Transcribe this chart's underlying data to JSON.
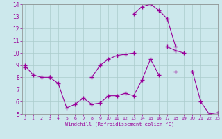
{
  "x": [
    0,
    1,
    2,
    3,
    4,
    5,
    6,
    7,
    8,
    9,
    10,
    11,
    12,
    13,
    14,
    15,
    16,
    17,
    18,
    19,
    20,
    21,
    22,
    23
  ],
  "y_low": [
    9.0,
    8.2,
    8.0,
    8.0,
    7.5,
    5.5,
    5.8,
    6.3,
    5.8,
    5.9,
    6.5,
    6.5,
    6.7,
    6.5,
    7.8,
    9.5,
    8.2,
    null,
    null,
    null,
    null,
    null,
    null,
    null
  ],
  "y_spike": [
    null,
    null,
    null,
    null,
    null,
    null,
    null,
    null,
    null,
    null,
    null,
    null,
    null,
    13.2,
    13.8,
    14.0,
    13.5,
    12.8,
    10.5,
    null,
    null,
    null,
    null,
    null
  ],
  "y_rise": [
    8.8,
    null,
    null,
    8.0,
    null,
    null,
    null,
    null,
    8.0,
    9.0,
    9.5,
    9.8,
    9.9,
    10.0,
    null,
    null,
    null,
    10.5,
    10.2,
    10.0,
    null,
    null,
    null,
    null
  ],
  "y_flat": [
    null,
    null,
    null,
    null,
    null,
    null,
    null,
    null,
    null,
    null,
    null,
    null,
    null,
    null,
    null,
    null,
    null,
    null,
    8.5,
    null,
    8.5,
    6.0,
    5.0,
    5.1
  ],
  "color": "#990099",
  "bg_color": "#cce8ec",
  "grid_color": "#aacccc",
  "xlabel": "Windchill (Refroidissement éolien,°C)",
  "xlim": [
    -0.5,
    23
  ],
  "ylim": [
    5,
    14
  ],
  "yticks": [
    5,
    6,
    7,
    8,
    9,
    10,
    11,
    12,
    13,
    14
  ],
  "xticks": [
    0,
    1,
    2,
    3,
    4,
    5,
    6,
    7,
    8,
    9,
    10,
    11,
    12,
    13,
    14,
    15,
    16,
    17,
    18,
    19,
    20,
    21,
    22,
    23
  ]
}
